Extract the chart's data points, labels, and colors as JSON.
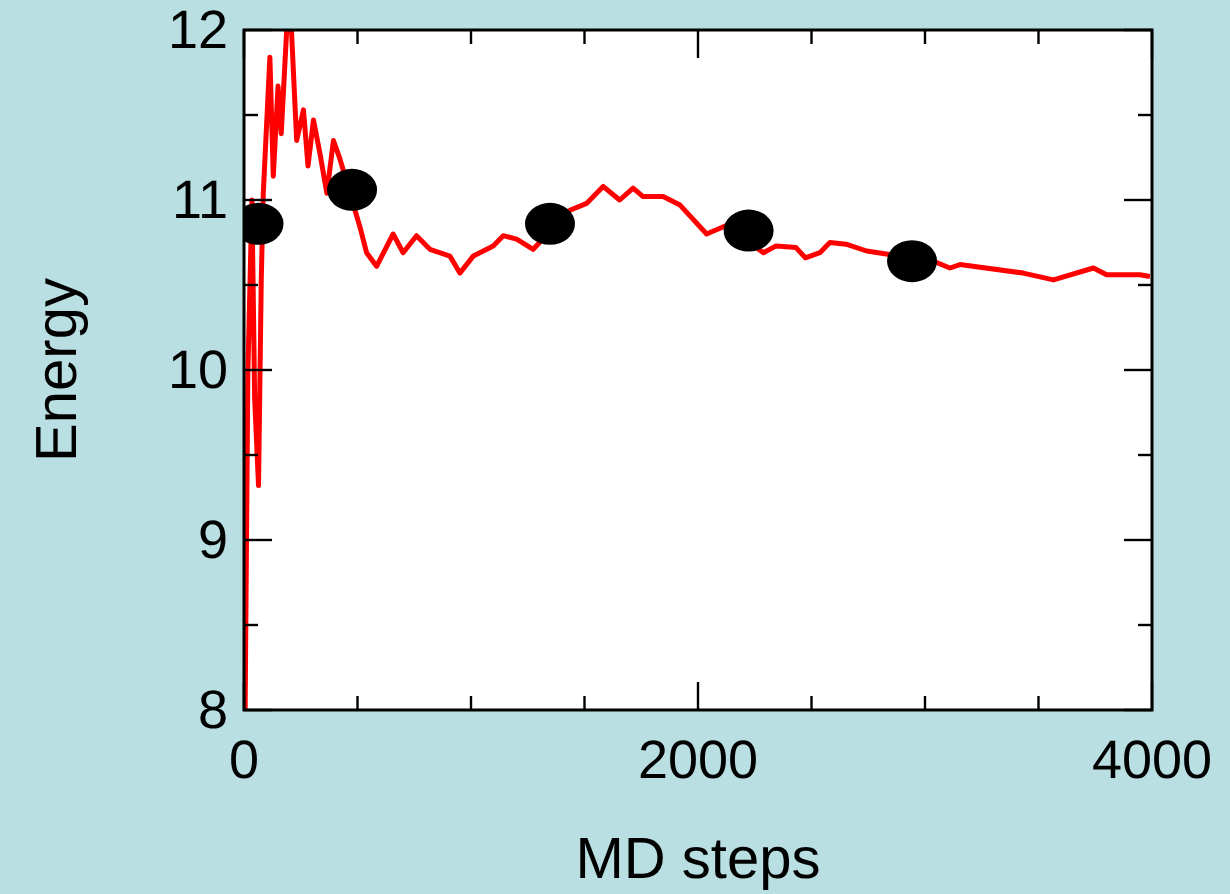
{
  "chart_data": {
    "type": "line",
    "xlabel": "MD steps",
    "ylabel": "Energy",
    "xlim": [
      0,
      4000
    ],
    "ylim": [
      8,
      12
    ],
    "xticks": [
      0,
      {
        "value": 500,
        "label": null
      },
      {
        "value": 1000,
        "label": null
      },
      {
        "value": 1500,
        "label": null
      },
      2000,
      {
        "value": 2500,
        "label": null
      },
      {
        "value": 3000,
        "label": null
      },
      {
        "value": 3500,
        "label": null
      },
      4000
    ],
    "yticks": [
      8,
      {
        "value": 8.5,
        "label": null
      },
      9,
      {
        "value": 9.5,
        "label": null
      },
      10,
      {
        "value": 10.5,
        "label": null
      },
      11,
      {
        "value": 11.5,
        "label": null
      },
      12
    ],
    "grid": false,
    "series": [
      {
        "color": "#ff0000",
        "marker": "none",
        "line_style": "solid",
        "x": [
          5,
          17,
          35,
          47,
          64,
          76,
          85,
          114,
          129,
          150,
          164,
          188,
          209,
          232,
          262,
          282,
          306,
          335,
          365,
          394,
          423,
          511,
          540,
          584,
          657,
          701,
          760,
          819,
          907,
          951,
          1010,
          1098,
          1142,
          1201,
          1274,
          1436,
          1509,
          1582,
          1655,
          1714,
          1758,
          1846,
          1921,
          2038,
          2125,
          2288,
          2344,
          2432,
          2473,
          2537,
          2581,
          2652,
          2743,
          3037,
          3110,
          3154,
          3433,
          3566,
          3742,
          3800,
          3947,
          3991
        ],
        "values": [
          8.0,
          9.98,
          11.0,
          9.83,
          9.32,
          10.53,
          11.04,
          11.84,
          11.14,
          11.67,
          11.39,
          12.0,
          12.0,
          11.35,
          11.53,
          11.2,
          11.47,
          11.27,
          11.04,
          11.35,
          11.24,
          10.84,
          10.69,
          10.61,
          10.8,
          10.69,
          10.79,
          10.71,
          10.67,
          10.57,
          10.67,
          10.73,
          10.79,
          10.77,
          10.71,
          10.94,
          10.98,
          11.08,
          11.0,
          11.07,
          11.02,
          11.02,
          10.97,
          10.8,
          10.85,
          10.69,
          10.73,
          10.72,
          10.66,
          10.69,
          10.75,
          10.74,
          10.7,
          10.64,
          10.6,
          10.62,
          10.57,
          10.53,
          10.6,
          10.56,
          10.56,
          10.55
        ]
      },
      {
        "type": "scatter",
        "color": "#000000",
        "marker": "circle",
        "x": [
          64,
          476,
          1348,
          2223,
          2943
        ],
        "values": [
          10.86,
          11.06,
          10.86,
          10.82,
          10.64
        ]
      }
    ]
  }
}
